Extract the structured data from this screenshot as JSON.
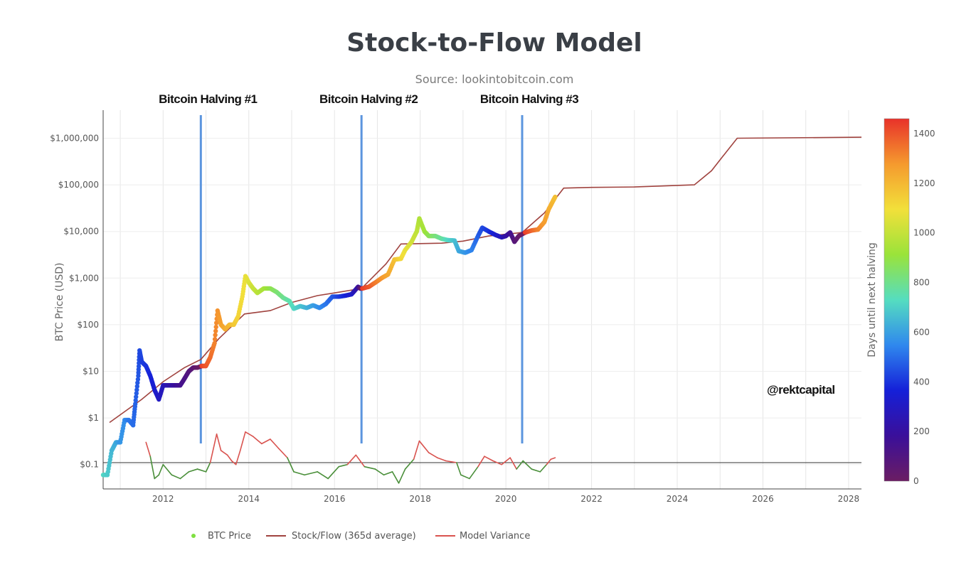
{
  "chart_data": {
    "type": "scatter",
    "title": "Stock-to-Flow Model",
    "subtitle": "Source: lookintobitcoin.com",
    "ylabel": "BTC Price (USD)",
    "xlabel": "",
    "yscale": "log",
    "x_range": [
      2010.6,
      2028.3
    ],
    "y_range": [
      0.03,
      4000000
    ],
    "x_ticks": [
      2012,
      2014,
      2016,
      2018,
      2020,
      2022,
      2024,
      2026,
      2028
    ],
    "y_ticks": [
      {
        "value": 1000000,
        "label": "$1,000,000"
      },
      {
        "value": 100000,
        "label": "$100,000"
      },
      {
        "value": 10000,
        "label": "$10,000"
      },
      {
        "value": 1000,
        "label": "$1,000"
      },
      {
        "value": 100,
        "label": "$100"
      },
      {
        "value": 10,
        "label": "$10"
      },
      {
        "value": 1,
        "label": "$1"
      },
      {
        "value": 0.1,
        "label": "$0.1"
      }
    ],
    "grid": true,
    "halvings": [
      {
        "label": "Bitcoin Halving #1",
        "x": 2012.88
      },
      {
        "label": "Bitcoin Halving #2",
        "x": 2016.63
      },
      {
        "label": "Bitcoin Halving #3",
        "x": 2020.38
      }
    ],
    "annotation": "@rektcapital",
    "colorbar": {
      "title": "Days until next halving",
      "min": 0,
      "max": 1460,
      "ticks": [
        0,
        200,
        400,
        600,
        800,
        1000,
        1200,
        1400
      ],
      "colors": [
        "#6b1d63",
        "#3a0f9a",
        "#1520d8",
        "#2f88ee",
        "#55ddc0",
        "#9ae33a",
        "#f2e03a",
        "#f59a2e",
        "#e8322a"
      ]
    },
    "series": [
      {
        "name": "BTC Price",
        "kind": "scatter",
        "color": "#7fe040",
        "points": [
          [
            2010.6,
            0.06,
            720
          ],
          [
            2010.7,
            0.06,
            690
          ],
          [
            2010.8,
            0.2,
            650
          ],
          [
            2010.9,
            0.3,
            620
          ],
          [
            2011.0,
            0.3,
            580
          ],
          [
            2011.1,
            0.9,
            560
          ],
          [
            2011.2,
            0.9,
            520
          ],
          [
            2011.3,
            0.7,
            500
          ],
          [
            2011.35,
            2,
            480
          ],
          [
            2011.42,
            8,
            460
          ],
          [
            2011.45,
            28,
            440
          ],
          [
            2011.5,
            16,
            420
          ],
          [
            2011.6,
            13,
            400
          ],
          [
            2011.7,
            8,
            370
          ],
          [
            2011.8,
            4,
            340
          ],
          [
            2011.9,
            2.5,
            300
          ],
          [
            2012.0,
            5,
            270
          ],
          [
            2012.1,
            5,
            240
          ],
          [
            2012.2,
            5,
            210
          ],
          [
            2012.3,
            5,
            180
          ],
          [
            2012.4,
            5,
            150
          ],
          [
            2012.5,
            7,
            120
          ],
          [
            2012.6,
            10,
            90
          ],
          [
            2012.7,
            12,
            55
          ],
          [
            2012.8,
            12,
            20
          ],
          [
            2012.9,
            13,
            1440
          ],
          [
            2013.0,
            13,
            1400
          ],
          [
            2013.1,
            20,
            1360
          ],
          [
            2013.2,
            40,
            1320
          ],
          [
            2013.27,
            200,
            1290
          ],
          [
            2013.35,
            100,
            1260
          ],
          [
            2013.45,
            80,
            1230
          ],
          [
            2013.55,
            100,
            1200
          ],
          [
            2013.65,
            100,
            1160
          ],
          [
            2013.75,
            150,
            1130
          ],
          [
            2013.85,
            400,
            1100
          ],
          [
            2013.92,
            1100,
            1080
          ],
          [
            2014.0,
            800,
            1050
          ],
          [
            2014.1,
            600,
            1010
          ],
          [
            2014.2,
            480,
            980
          ],
          [
            2014.35,
            600,
            940
          ],
          [
            2014.5,
            600,
            890
          ],
          [
            2014.65,
            500,
            840
          ],
          [
            2014.8,
            380,
            800
          ],
          [
            2014.95,
            320,
            760
          ],
          [
            2015.05,
            220,
            720
          ],
          [
            2015.2,
            250,
            680
          ],
          [
            2015.35,
            230,
            640
          ],
          [
            2015.5,
            260,
            600
          ],
          [
            2015.65,
            230,
            560
          ],
          [
            2015.8,
            280,
            520
          ],
          [
            2015.95,
            400,
            470
          ],
          [
            2016.1,
            400,
            420
          ],
          [
            2016.25,
            420,
            370
          ],
          [
            2016.4,
            450,
            320
          ],
          [
            2016.55,
            650,
            200
          ],
          [
            2016.6,
            600,
            60
          ],
          [
            2016.65,
            600,
            1440
          ],
          [
            2016.8,
            650,
            1400
          ],
          [
            2016.95,
            800,
            1340
          ],
          [
            2017.1,
            1000,
            1290
          ],
          [
            2017.25,
            1200,
            1240
          ],
          [
            2017.4,
            2500,
            1180
          ],
          [
            2017.55,
            2600,
            1120
          ],
          [
            2017.65,
            4000,
            1080
          ],
          [
            2017.8,
            6000,
            1030
          ],
          [
            2017.92,
            10000,
            990
          ],
          [
            2017.98,
            19000,
            960
          ],
          [
            2018.1,
            10000,
            930
          ],
          [
            2018.2,
            8000,
            880
          ],
          [
            2018.35,
            8000,
            830
          ],
          [
            2018.5,
            7000,
            780
          ],
          [
            2018.65,
            6500,
            720
          ],
          [
            2018.8,
            6400,
            670
          ],
          [
            2018.9,
            3800,
            620
          ],
          [
            2019.05,
            3500,
            580
          ],
          [
            2019.2,
            4000,
            540
          ],
          [
            2019.35,
            8000,
            480
          ],
          [
            2019.45,
            12000,
            440
          ],
          [
            2019.6,
            10000,
            400
          ],
          [
            2019.75,
            8500,
            340
          ],
          [
            2019.9,
            7500,
            280
          ],
          [
            2020.0,
            8000,
            220
          ],
          [
            2020.1,
            9500,
            160
          ],
          [
            2020.2,
            6000,
            80
          ],
          [
            2020.3,
            8000,
            30
          ],
          [
            2020.45,
            9500,
            1440
          ],
          [
            2020.6,
            10500,
            1380
          ],
          [
            2020.75,
            11000,
            1320
          ],
          [
            2020.9,
            16000,
            1270
          ],
          [
            2021.0,
            30000,
            1230
          ],
          [
            2021.1,
            45000,
            1200
          ],
          [
            2021.15,
            55000,
            1180
          ]
        ]
      },
      {
        "name": "Stock/Flow (365d average)",
        "kind": "line",
        "color": "#a0433f",
        "points": [
          [
            2010.75,
            0.8
          ],
          [
            2011.5,
            2.5
          ],
          [
            2012.0,
            6
          ],
          [
            2012.5,
            12
          ],
          [
            2012.88,
            18
          ],
          [
            2013.3,
            50
          ],
          [
            2013.9,
            170
          ],
          [
            2014.5,
            200
          ],
          [
            2015.0,
            300
          ],
          [
            2015.6,
            420
          ],
          [
            2016.0,
            480
          ],
          [
            2016.63,
            600
          ],
          [
            2017.2,
            2000
          ],
          [
            2017.55,
            5400
          ],
          [
            2018.5,
            5600
          ],
          [
            2019.0,
            6200
          ],
          [
            2019.6,
            8000
          ],
          [
            2020.38,
            9500
          ],
          [
            2020.9,
            25000
          ],
          [
            2021.35,
            85000
          ],
          [
            2022.0,
            88000
          ],
          [
            2023.0,
            90000
          ],
          [
            2024.4,
            100000
          ],
          [
            2024.8,
            200000
          ],
          [
            2025.1,
            450000
          ],
          [
            2025.4,
            1000000
          ],
          [
            2028.3,
            1050000
          ]
        ]
      },
      {
        "name": "Model Variance",
        "kind": "line",
        "color": "#d9534f",
        "color_below_baseline": "#4a8f3a",
        "baseline": 0.11,
        "points": [
          [
            2011.6,
            0.3
          ],
          [
            2011.7,
            0.15
          ],
          [
            2011.8,
            0.05
          ],
          [
            2011.9,
            0.06
          ],
          [
            2012.0,
            0.1
          ],
          [
            2012.2,
            0.06
          ],
          [
            2012.4,
            0.05
          ],
          [
            2012.6,
            0.07
          ],
          [
            2012.8,
            0.08
          ],
          [
            2013.0,
            0.07
          ],
          [
            2013.1,
            0.11
          ],
          [
            2013.25,
            0.45
          ],
          [
            2013.35,
            0.2
          ],
          [
            2013.5,
            0.16
          ],
          [
            2013.6,
            0.12
          ],
          [
            2013.7,
            0.1
          ],
          [
            2013.8,
            0.2
          ],
          [
            2013.92,
            0.5
          ],
          [
            2014.1,
            0.4
          ],
          [
            2014.3,
            0.28
          ],
          [
            2014.5,
            0.35
          ],
          [
            2014.7,
            0.22
          ],
          [
            2014.9,
            0.14
          ],
          [
            2015.05,
            0.07
          ],
          [
            2015.3,
            0.06
          ],
          [
            2015.6,
            0.07
          ],
          [
            2015.85,
            0.05
          ],
          [
            2016.1,
            0.09
          ],
          [
            2016.3,
            0.1
          ],
          [
            2016.5,
            0.16
          ],
          [
            2016.7,
            0.09
          ],
          [
            2016.95,
            0.08
          ],
          [
            2017.15,
            0.06
          ],
          [
            2017.35,
            0.07
          ],
          [
            2017.5,
            0.04
          ],
          [
            2017.65,
            0.08
          ],
          [
            2017.85,
            0.13
          ],
          [
            2017.98,
            0.32
          ],
          [
            2018.2,
            0.18
          ],
          [
            2018.4,
            0.14
          ],
          [
            2018.6,
            0.12
          ],
          [
            2018.85,
            0.11
          ],
          [
            2018.95,
            0.06
          ],
          [
            2019.15,
            0.05
          ],
          [
            2019.35,
            0.09
          ],
          [
            2019.5,
            0.15
          ],
          [
            2019.7,
            0.12
          ],
          [
            2019.9,
            0.1
          ],
          [
            2020.1,
            0.14
          ],
          [
            2020.25,
            0.08
          ],
          [
            2020.4,
            0.12
          ],
          [
            2020.6,
            0.08
          ],
          [
            2020.8,
            0.07
          ],
          [
            2020.95,
            0.1
          ],
          [
            2021.05,
            0.13
          ],
          [
            2021.15,
            0.14
          ]
        ]
      }
    ],
    "legend": {
      "position": "bottom",
      "items": [
        "BTC Price",
        "Stock/Flow (365d average)",
        "Model Variance"
      ]
    }
  }
}
